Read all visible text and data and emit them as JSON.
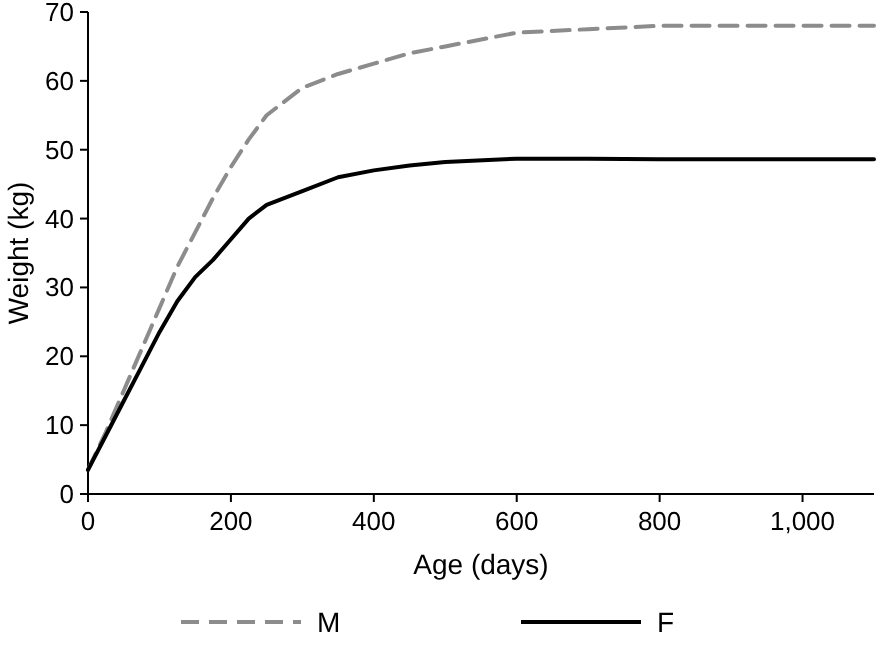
{
  "chart_data": {
    "type": "line",
    "xlabel": "Age (days)",
    "ylabel": "Weight (kg)",
    "xlim": [
      0,
      1100
    ],
    "xticks": [
      0,
      200,
      400,
      600,
      800,
      {
        "value": 1000,
        "label": "1,000"
      }
    ],
    "ylim": [
      0,
      70
    ],
    "yticks": [
      0,
      10,
      20,
      30,
      40,
      50,
      60,
      70
    ],
    "grid": false,
    "legend": "bottom",
    "marker": "none",
    "series": [
      {
        "name": "M",
        "color": "#8c8c8c",
        "line_style": "dashed",
        "x": [
          0,
          25,
          50,
          75,
          100,
          125,
          150,
          175,
          200,
          225,
          250,
          300,
          350,
          400,
          450,
          500,
          600,
          700,
          800,
          900,
          1000,
          1100
        ],
        "values": [
          3.5,
          9,
          15,
          21,
          27,
          33,
          38,
          43,
          47.5,
          51.5,
          55,
          59,
          61,
          62.5,
          64,
          65,
          67,
          67.5,
          68,
          68,
          68,
          68
        ]
      },
      {
        "name": "F",
        "color": "#000000",
        "line_style": "solid",
        "x": [
          0,
          25,
          50,
          75,
          100,
          125,
          150,
          175,
          200,
          225,
          250,
          300,
          350,
          400,
          450,
          500,
          600,
          700,
          800,
          900,
          1000,
          1100
        ],
        "values": [
          3.5,
          8.5,
          13.5,
          18.5,
          23.5,
          28,
          31.5,
          34,
          37,
          40,
          42,
          44,
          46,
          47,
          47.7,
          48.2,
          48.7,
          48.7,
          48.6,
          48.6,
          48.6,
          48.6
        ]
      }
    ]
  }
}
